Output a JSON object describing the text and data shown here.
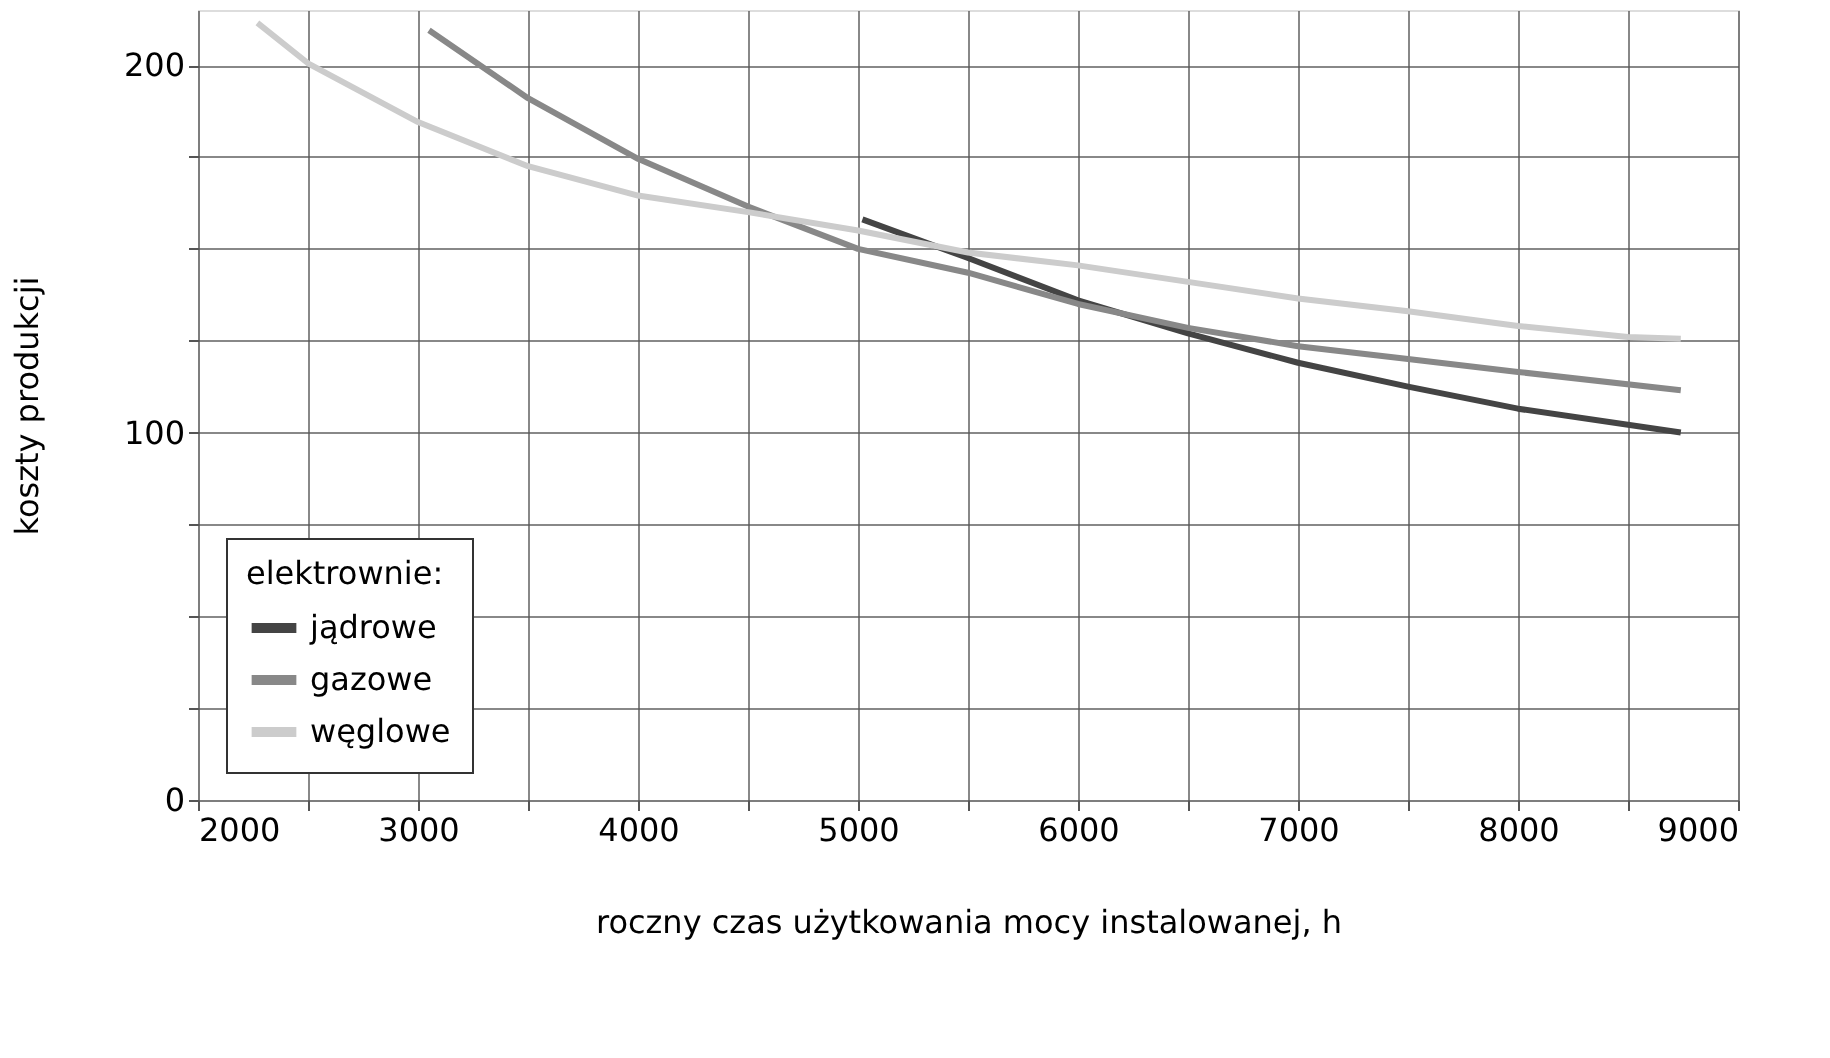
{
  "chart_data": {
    "type": "line",
    "xlabel": "roczny czas użytkowania mocy instalowanej, h",
    "ylabel": "koszty produkcji",
    "legend_title": "elektrownie:",
    "legend": "bottom left",
    "grid": true,
    "marker": "none",
    "line_style": "solid",
    "xlim": [
      2000,
      9000
    ],
    "ylim": [
      0,
      215
    ],
    "xticks": [
      2000,
      {
        "value": 2500,
        "label": null
      },
      3000,
      {
        "value": 3500,
        "label": null
      },
      4000,
      {
        "value": 4500,
        "label": null
      },
      5000,
      {
        "value": 5500,
        "label": null
      },
      6000,
      {
        "value": 6500,
        "label": null
      },
      7000,
      {
        "value": 7500,
        "label": null
      },
      8000,
      {
        "value": 8500,
        "label": null
      },
      9000
    ],
    "yticks": [
      0,
      {
        "value": 25,
        "label": null
      },
      {
        "value": 50,
        "label": null
      },
      {
        "value": 75,
        "label": null
      },
      100,
      {
        "value": 125,
        "label": null
      },
      {
        "value": 150,
        "label": null
      },
      {
        "value": 175,
        "label": null
      },
      200
    ],
    "series": [
      {
        "name": "jądrowe",
        "color": "#444444",
        "x": [
          5020,
          5500,
          6000,
          6500,
          7000,
          7500,
          8000,
          8740
        ],
        "values": [
          158,
          147.5,
          136,
          127,
          119,
          112.5,
          106.5,
          100
        ]
      },
      {
        "name": "gazowe",
        "color": "#888888",
        "x": [
          3050,
          3500,
          4000,
          4500,
          5000,
          5500,
          6000,
          6500,
          7000,
          7500,
          8000,
          8740
        ],
        "values": [
          209.5,
          191,
          174.5,
          161.5,
          150,
          143.5,
          135,
          128.5,
          123.5,
          120,
          116.5,
          111.5
        ]
      },
      {
        "name": "węglowe",
        "color": "#cccccc",
        "x": [
          2270,
          2500,
          3000,
          3500,
          4000,
          4500,
          5000,
          5500,
          6000,
          6500,
          7000,
          7500,
          8000,
          8500,
          8740
        ],
        "values": [
          211.5,
          200.5,
          184.5,
          172.5,
          164.5,
          160,
          155,
          149,
          145.5,
          141,
          136.5,
          133,
          129,
          126,
          125.5
        ]
      }
    ]
  }
}
